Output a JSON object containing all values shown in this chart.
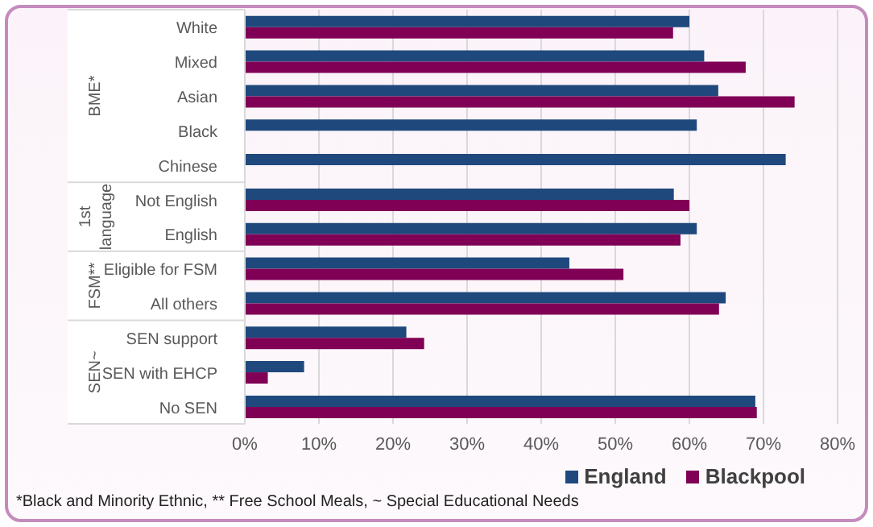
{
  "chart_data": {
    "type": "bar",
    "orientation": "horizontal",
    "categories": [
      "White",
      "Mixed",
      "Asian",
      "Black",
      "Chinese",
      "Not English",
      "English",
      "Eligible for FSM",
      "All others",
      "SEN support",
      "SEN with EHCP",
      "No SEN"
    ],
    "series": [
      {
        "name": "England",
        "color": "#1f497d",
        "values": [
          60,
          62,
          63.9,
          61,
          73,
          57.9,
          61,
          43.8,
          64.9,
          21.8,
          8,
          68.9
        ]
      },
      {
        "name": "Blackpool",
        "color": "#7f0055",
        "values": [
          57.8,
          67.6,
          74.2,
          null,
          null,
          60,
          58.8,
          51.1,
          64,
          24.2,
          3.1,
          69.1
        ]
      }
    ],
    "xlim": [
      0,
      80
    ],
    "xticks": [
      {
        "value": 0,
        "label": "0%"
      },
      {
        "value": 10,
        "label": "10%"
      },
      {
        "value": 20,
        "label": "20%"
      },
      {
        "value": 30,
        "label": "30%"
      },
      {
        "value": 40,
        "label": "40%"
      },
      {
        "value": 50,
        "label": "50%"
      },
      {
        "value": 60,
        "label": "60%"
      },
      {
        "value": 70,
        "label": "70%"
      },
      {
        "value": 80,
        "label": "80%"
      }
    ],
    "grid": "x",
    "legend": "bottom right",
    "annotations": [
      "BME*",
      "1st language",
      "FSM**",
      "SEN~",
      "*Black and Minority Ethnic, ** Free School Meals, ~ Special Educational Needs"
    ]
  }
}
